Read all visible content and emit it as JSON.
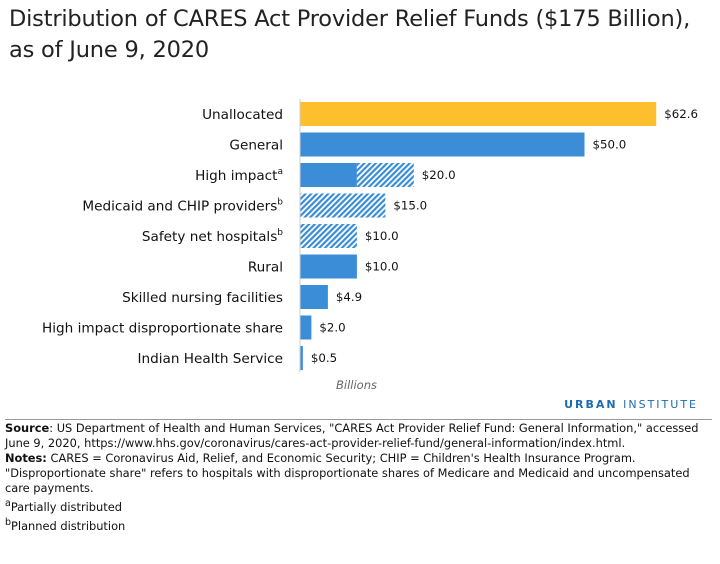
{
  "header": {
    "title": "Distribution of CARES Act Provider Relief Funds ($175 Billion), as of June 9, 2020"
  },
  "chart_data": {
    "type": "bar",
    "orientation": "horizontal",
    "title": "Distribution of CARES Act Provider Relief Funds ($175 Billion), as of June 9, 2020",
    "xlabel": "Billions",
    "xlim": [
      0,
      65
    ],
    "grid": false,
    "categories": [
      "Unallocated",
      "General",
      "High impact",
      "Medicaid and CHIP providers",
      "Safety net hospitals",
      "Rural",
      "Skilled nursing facilities",
      "High impact disproportionate share",
      "Indian Health Service"
    ],
    "superscripts": [
      "",
      "",
      "a",
      "b",
      "b",
      "",
      "",
      "",
      ""
    ],
    "values": [
      62.6,
      50.0,
      20.0,
      15.0,
      10.0,
      10.0,
      4.9,
      2.0,
      0.5
    ],
    "value_labels": [
      "$62.6",
      "$50.0",
      "$20.0",
      "$15.0",
      "$10.0",
      "$10.0",
      "$4.9",
      "$2.0",
      "$0.5"
    ],
    "distributed_portion": [
      null,
      50.0,
      10.0,
      0,
      0,
      10.0,
      4.9,
      2.0,
      0.5
    ],
    "colors": {
      "unallocated": "#fdbf2d",
      "distributed": "#3a8dd6",
      "planned_hatch": "#3a8dd6"
    }
  },
  "brand": {
    "strong": "URBAN",
    "rest": " INSTITUTE"
  },
  "notes": {
    "source_label": "Source",
    "source_text": ": US Department of Health and Human Services, \"CARES Act Provider Relief Fund: General Information,\" accessed June 9, 2020, https://www.hhs.gov/coronavirus/cares-act-provider-relief-fund/general-information/index.html.",
    "notes_label": "Notes:",
    "notes_text": " CARES = Coronavirus Aid, Relief, and Economic Security; CHIP = Children's Health Insurance Program. \"Disproportionate share\" refers to hospitals with disproportionate shares of Medicare and Medicaid and uncompensated care payments.",
    "footnote_a_mark": "a",
    "footnote_a": "Partially distributed",
    "footnote_b_mark": "b",
    "footnote_b": "Planned distribution"
  }
}
